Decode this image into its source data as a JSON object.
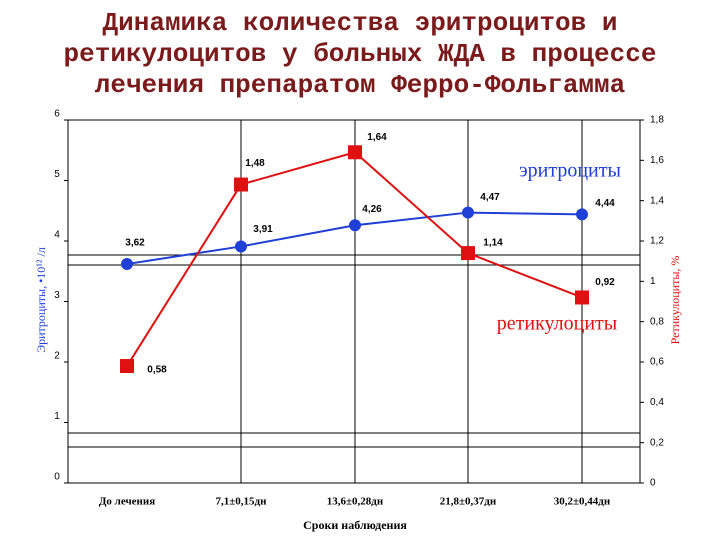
{
  "chart_data": {
    "type": "line",
    "title": "Динамика количества эритроцитов и ретикулоцитов у больных ЖДА в процессе лечения препаратом Ферро-Фольгамма",
    "x_label": "Сроки наблюдения",
    "y_label": "Эритроциты, •10¹² /л",
    "y2_label": "Ретикулоциты, %",
    "categories": [
      "До лечения",
      "7,1±0,15дн",
      "13,6±0,28дн",
      "21,8±0,37дн",
      "30,2±0,44дн"
    ],
    "ylim": [
      0,
      6
    ],
    "yticks": [
      0,
      1,
      2,
      3,
      4,
      5,
      6
    ],
    "y2lim": [
      0,
      1.8
    ],
    "y2ticks": [
      0,
      {
        "value": 0.2,
        "label": "0,2"
      },
      {
        "value": 0.4,
        "label": "0,4"
      },
      {
        "value": 0.6,
        "label": "0,6"
      },
      {
        "value": 0.8,
        "label": "0,8"
      },
      1,
      {
        "value": 1.2,
        "label": "1,2"
      },
      {
        "value": 1.4,
        "label": "1,4"
      },
      {
        "value": 1.6,
        "label": "1,6"
      },
      {
        "value": 1.8,
        "label": "1,8"
      }
    ],
    "series": [
      {
        "name": "эритроциты",
        "color": "#1f3fd6",
        "values": [
          3.62,
          3.91,
          4.26,
          4.47,
          4.44
        ],
        "value_labels": [
          "3,62",
          "3,91",
          "4,26",
          "4,47",
          "4,44"
        ]
      },
      {
        "name": "ретикулоциты",
        "color": "#e01010",
        "axis": "y2",
        "values": [
          0.58,
          1.48,
          1.64,
          1.14,
          0.92
        ],
        "value_labels": [
          "0,58",
          "1,48",
          "1,64",
          "1,14",
          "0,92"
        ]
      }
    ]
  }
}
